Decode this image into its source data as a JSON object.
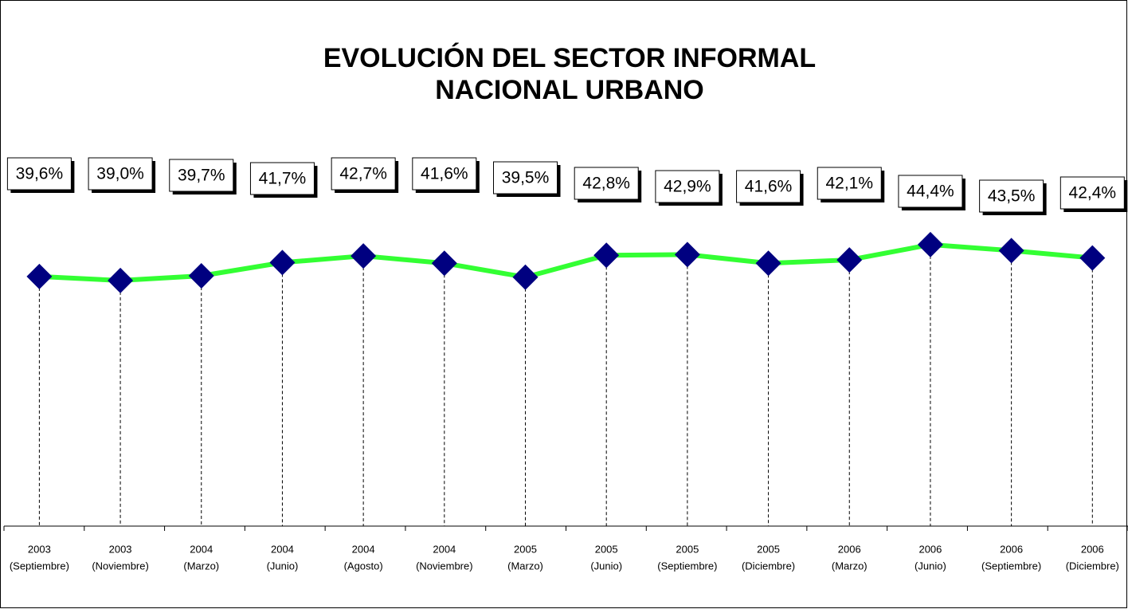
{
  "chart_data": {
    "type": "line",
    "title": [
      "EVOLUCIÓN DEL SECTOR INFORMAL",
      "NACIONAL URBANO"
    ],
    "categories": [
      [
        "2003",
        "(Septiembre)"
      ],
      [
        "2003",
        "(Noviembre)"
      ],
      [
        "2004",
        "(Marzo)"
      ],
      [
        "2004",
        "(Junio)"
      ],
      [
        "2004",
        "(Agosto)"
      ],
      [
        "2004",
        "(Noviembre)"
      ],
      [
        "2005",
        "(Marzo)"
      ],
      [
        "2005",
        "(Junio)"
      ],
      [
        "2005",
        "(Septiembre)"
      ],
      [
        "2005",
        "(Diciembre)"
      ],
      [
        "2006",
        "(Marzo)"
      ],
      [
        "2006",
        "(Junio)"
      ],
      [
        "2006",
        "(Septiembre)"
      ],
      [
        "2006",
        "(Diciembre)"
      ]
    ],
    "series": [
      {
        "name": "Sector informal",
        "color": "#33ff33",
        "marker_color": "#000080",
        "values": [
          39.6,
          39.0,
          39.7,
          41.7,
          42.7,
          41.6,
          39.5,
          42.8,
          42.9,
          41.6,
          42.1,
          44.4,
          43.5,
          42.4
        ],
        "value_labels": [
          "39,6%",
          "39,0%",
          "39,7%",
          "41,7%",
          "42,7%",
          "41,6%",
          "39,5%",
          "42,8%",
          "42,9%",
          "41,6%",
          "42,1%",
          "44,4%",
          "43,5%",
          "42,4%"
        ]
      }
    ],
    "ylim": [
      2,
      60
    ]
  }
}
